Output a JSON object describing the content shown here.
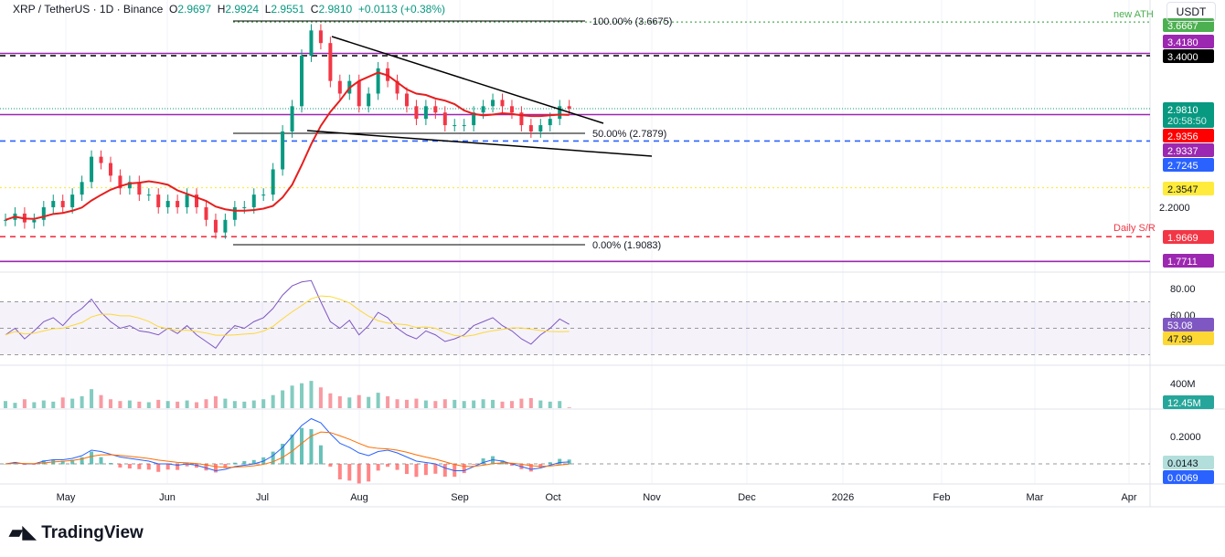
{
  "header": {
    "symbol": "XRP / TetherUS · 1D · Binance",
    "o_label": "O",
    "o": "2.9697",
    "h_label": "H",
    "h": "2.9924",
    "l_label": "L",
    "l": "2.9551",
    "c_label": "C",
    "c": "2.9810",
    "change": "+0.0113 (+0.38%)"
  },
  "currency_button": "USDT",
  "brand": "TradingView",
  "colors": {
    "up": "#089981",
    "down": "#f23645",
    "ma": "#e61e1e",
    "rsi": "#7e57c2",
    "rsi_ma": "#fdd835",
    "macd": "#2962ff",
    "signal": "#ff6d00"
  },
  "price_labels": [
    {
      "text": "3.6667",
      "bg": "#4caf50",
      "fg": "#fff",
      "price": 3.6667
    },
    {
      "text": "3.4180",
      "bg": "#9c27b0",
      "fg": "#fff",
      "price": 3.418
    },
    {
      "text": "3.4000",
      "bg": "#000000",
      "fg": "#fff",
      "price": 3.4
    },
    {
      "text": "2.9810",
      "bg": "#089981",
      "fg": "#fff",
      "price": 2.981
    },
    {
      "text": "2.9356",
      "bg": "#ff0000",
      "fg": "#fff",
      "price": 2.9356
    },
    {
      "text": "2.9337",
      "bg": "#9c27b0",
      "fg": "#fff",
      "price": 2.9337
    },
    {
      "text": "2.7245",
      "bg": "#2962ff",
      "fg": "#fff",
      "price": 2.7245
    },
    {
      "text": "2.3547",
      "bg": "#ffeb3b",
      "fg": "#131722",
      "price": 2.3547
    },
    {
      "text": "1.9669",
      "bg": "#f23645",
      "fg": "#fff",
      "price": 1.9669
    },
    {
      "text": "1.7711",
      "bg": "#9c27b0",
      "fg": "#fff",
      "price": 1.7711
    }
  ],
  "countdown": "20:58:50",
  "annotations": {
    "new_ath": "new ATH",
    "daily_sr": "Daily S/R",
    "fib_100": "100.00% (3.6675)",
    "fib_50": "50.00% (2.7879)",
    "fib_0": "0.00% (1.9083)"
  },
  "chart_data": [
    {
      "type": "candlestick",
      "title": "XRP / TetherUS · 1D · Binance",
      "x_ticks": [
        "May",
        "Jun",
        "Jul",
        "Aug",
        "Sep",
        "Oct",
        "Nov",
        "Dec",
        "2026",
        "Feb",
        "Mar",
        "Apr"
      ],
      "y_ticks": [
        "2.2000"
      ],
      "ylim": [
        1.75,
        3.7
      ],
      "close": [
        2.1,
        2.15,
        2.08,
        2.1,
        2.2,
        2.25,
        2.2,
        2.3,
        2.4,
        2.6,
        2.55,
        2.45,
        2.35,
        2.4,
        2.3,
        2.3,
        2.2,
        2.25,
        2.2,
        2.3,
        2.2,
        2.1,
        2.0,
        2.1,
        2.2,
        2.2,
        2.3,
        2.3,
        2.5,
        2.8,
        3.0,
        3.4,
        3.6,
        3.5,
        3.2,
        3.1,
        3.2,
        3.0,
        3.1,
        3.3,
        3.2,
        3.1,
        3.0,
        2.9,
        3.0,
        2.95,
        2.85,
        2.85,
        2.85,
        2.95,
        3.0,
        3.05,
        3.0,
        2.95,
        2.85,
        2.8,
        2.85,
        2.9,
        3.0,
        2.981
      ],
      "levels": [
        3.6667,
        3.418,
        3.4,
        2.9337,
        2.7245,
        2.3547,
        1.9669,
        1.7711
      ],
      "trendlines": [
        {
          "from": [
            "Jul 20",
            3.55
          ],
          "to": [
            "Oct 22",
            2.865
          ]
        },
        {
          "from": [
            "Jul 13",
            2.807
          ],
          "to": [
            "Nov 1",
            2.605
          ]
        }
      ]
    },
    {
      "type": "line",
      "name": "RSI",
      "y_ticks": [
        "80.00",
        "60.00"
      ],
      "band": [
        30,
        70
      ],
      "current": "53.08",
      "ma_current": "47.99",
      "values": [
        45,
        50,
        42,
        48,
        55,
        58,
        52,
        60,
        65,
        72,
        62,
        55,
        50,
        52,
        48,
        47,
        45,
        50,
        46,
        52,
        45,
        40,
        35,
        45,
        52,
        50,
        55,
        58,
        65,
        75,
        82,
        85,
        86,
        70,
        55,
        50,
        56,
        45,
        52,
        62,
        58,
        50,
        45,
        42,
        48,
        45,
        40,
        42,
        45,
        52,
        55,
        58,
        52,
        48,
        42,
        38,
        45,
        50,
        57,
        53
      ]
    },
    {
      "type": "bar",
      "name": "Volume",
      "y_ticks": [
        "400M"
      ],
      "current": "12.45M",
      "values": [
        120,
        90,
        150,
        100,
        130,
        110,
        180,
        160,
        200,
        320,
        220,
        150,
        120,
        130,
        110,
        100,
        140,
        120,
        110,
        130,
        100,
        150,
        200,
        160,
        120,
        110,
        130,
        150,
        220,
        300,
        380,
        420,
        460,
        350,
        250,
        200,
        180,
        220,
        190,
        260,
        200,
        150,
        140,
        160,
        130,
        120,
        150,
        140,
        120,
        130,
        150,
        140,
        110,
        120,
        160,
        170,
        130,
        110,
        120,
        12.45
      ]
    },
    {
      "type": "line",
      "name": "MACD",
      "y_ticks": [
        "0.2000"
      ],
      "current": "0.0143",
      "signal_current": "0.0069",
      "values": [
        0,
        0.01,
        0,
        0,
        0.02,
        0.03,
        0.03,
        0.04,
        0.06,
        0.1,
        0.09,
        0.07,
        0.05,
        0.04,
        0.03,
        0.02,
        0,
        0,
        -0.01,
        0,
        -0.01,
        -0.03,
        -0.05,
        -0.04,
        -0.02,
        -0.01,
        0,
        0.02,
        0.06,
        0.12,
        0.2,
        0.28,
        0.33,
        0.3,
        0.22,
        0.15,
        0.12,
        0.08,
        0.06,
        0.09,
        0.1,
        0.08,
        0.05,
        0.02,
        0.01,
        0,
        -0.03,
        -0.05,
        -0.05,
        -0.02,
        0.01,
        0.03,
        0.02,
        0,
        -0.02,
        -0.04,
        -0.03,
        -0.01,
        0.01,
        0.0143
      ]
    }
  ]
}
